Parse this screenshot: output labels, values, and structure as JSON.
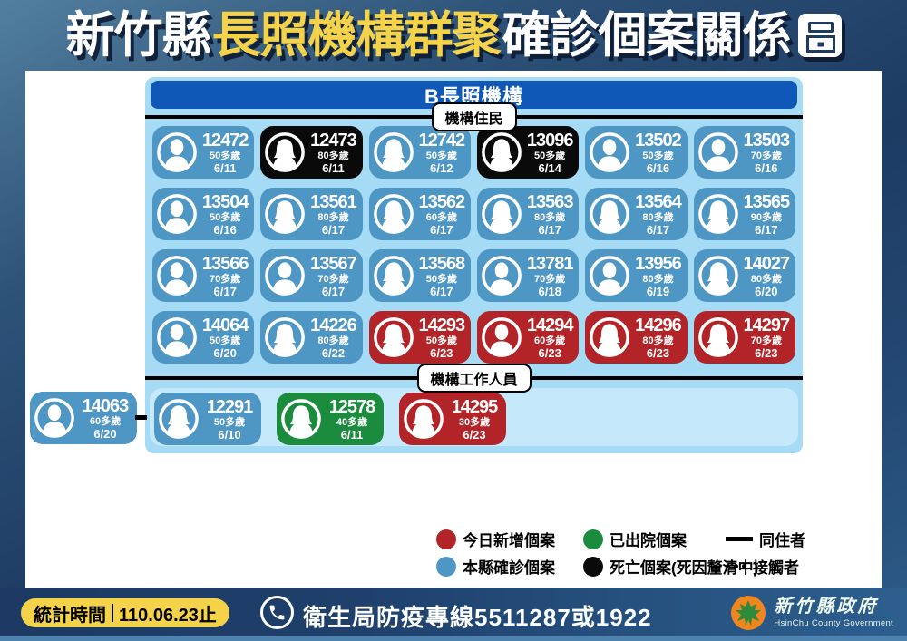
{
  "title": {
    "part1": "新竹縣",
    "part2": "長照機構群聚",
    "part3": "確診個案關係",
    "part4": "圖"
  },
  "facility": {
    "name": "B長照機構"
  },
  "sections": {
    "residents_label": "機構住民",
    "staff_label": "機構工作人員"
  },
  "colors": {
    "blue": "#4e96c4",
    "black": "#0a0a0a",
    "red": "#b22428",
    "green": "#1b8c3e",
    "panel": "#a6dbf5",
    "panel_inner": "#c5e9fb",
    "header_blue": "#0f58b8",
    "yellow": "#f4d34a",
    "navy": "#1d3b63"
  },
  "status_names": {
    "blue": "本縣確診個案",
    "black": "死亡個案",
    "red": "今日新增個案",
    "green": "已出院個案"
  },
  "residents": [
    {
      "id": "12472",
      "age": "50多歲",
      "date": "6/11",
      "status": "blue",
      "gender": "male"
    },
    {
      "id": "12473",
      "age": "80多歲",
      "date": "6/11",
      "status": "black",
      "gender": "female"
    },
    {
      "id": "12742",
      "age": "50多歲",
      "date": "6/12",
      "status": "blue",
      "gender": "female"
    },
    {
      "id": "13096",
      "age": "50多歲",
      "date": "6/14",
      "status": "black",
      "gender": "female"
    },
    {
      "id": "13502",
      "age": "50多歲",
      "date": "6/16",
      "status": "blue",
      "gender": "male"
    },
    {
      "id": "13503",
      "age": "70多歲",
      "date": "6/16",
      "status": "blue",
      "gender": "male"
    },
    {
      "id": "13504",
      "age": "50多歲",
      "date": "6/16",
      "status": "blue",
      "gender": "male"
    },
    {
      "id": "13561",
      "age": "80多歲",
      "date": "6/17",
      "status": "blue",
      "gender": "female"
    },
    {
      "id": "13562",
      "age": "60多歲",
      "date": "6/17",
      "status": "blue",
      "gender": "female"
    },
    {
      "id": "13563",
      "age": "80多歲",
      "date": "6/17",
      "status": "blue",
      "gender": "female"
    },
    {
      "id": "13564",
      "age": "80多歲",
      "date": "6/17",
      "status": "blue",
      "gender": "female"
    },
    {
      "id": "13565",
      "age": "90多歲",
      "date": "6/17",
      "status": "blue",
      "gender": "female"
    },
    {
      "id": "13566",
      "age": "70多歲",
      "date": "6/17",
      "status": "blue",
      "gender": "male"
    },
    {
      "id": "13567",
      "age": "70多歲",
      "date": "6/17",
      "status": "blue",
      "gender": "male"
    },
    {
      "id": "13568",
      "age": "50多歲",
      "date": "6/17",
      "status": "blue",
      "gender": "female"
    },
    {
      "id": "13781",
      "age": "70多歲",
      "date": "6/18",
      "status": "blue",
      "gender": "male"
    },
    {
      "id": "13956",
      "age": "80多歲",
      "date": "6/19",
      "status": "blue",
      "gender": "male"
    },
    {
      "id": "14027",
      "age": "80多歲",
      "date": "6/20",
      "status": "blue",
      "gender": "female"
    },
    {
      "id": "14064",
      "age": "50多歲",
      "date": "6/20",
      "status": "blue",
      "gender": "male"
    },
    {
      "id": "14226",
      "age": "80多歲",
      "date": "6/22",
      "status": "blue",
      "gender": "female"
    },
    {
      "id": "14293",
      "age": "50多歲",
      "date": "6/23",
      "status": "red",
      "gender": "female"
    },
    {
      "id": "14294",
      "age": "60多歲",
      "date": "6/23",
      "status": "red",
      "gender": "male"
    },
    {
      "id": "14296",
      "age": "80多歲",
      "date": "6/23",
      "status": "red",
      "gender": "female"
    },
    {
      "id": "14297",
      "age": "70多歲",
      "date": "6/23",
      "status": "red",
      "gender": "female"
    }
  ],
  "staff_outside": {
    "id": "14063",
    "age": "60多歲",
    "date": "6/20",
    "status": "blue",
    "gender": "male"
  },
  "staff": [
    {
      "id": "12291",
      "age": "50多歲",
      "date": "6/10",
      "status": "blue",
      "gender": "female"
    },
    {
      "id": "12578",
      "age": "40多歲",
      "date": "6/11",
      "status": "green",
      "gender": "female"
    },
    {
      "id": "14295",
      "age": "30多歲",
      "date": "6/23",
      "status": "red",
      "gender": "female"
    }
  ],
  "legend": [
    {
      "swatch": "red",
      "label": "今日新增個案"
    },
    {
      "swatch": "green",
      "label": "已出院個案"
    },
    {
      "swatch": "line",
      "label": "同住者"
    },
    {
      "swatch": "blue",
      "label": "本縣確診個案"
    },
    {
      "swatch": "black",
      "label": "死亡個案(死因釐清中)"
    },
    {
      "swatch": "dots",
      "label": "接觸者"
    }
  ],
  "footer": {
    "stats_label": "統計時間",
    "stats_value": "110.06.23止",
    "hotline": "衛生局防疫專線5511287或1922",
    "logo_cn": "新竹縣政府",
    "logo_en": "HsinChu County Government"
  }
}
